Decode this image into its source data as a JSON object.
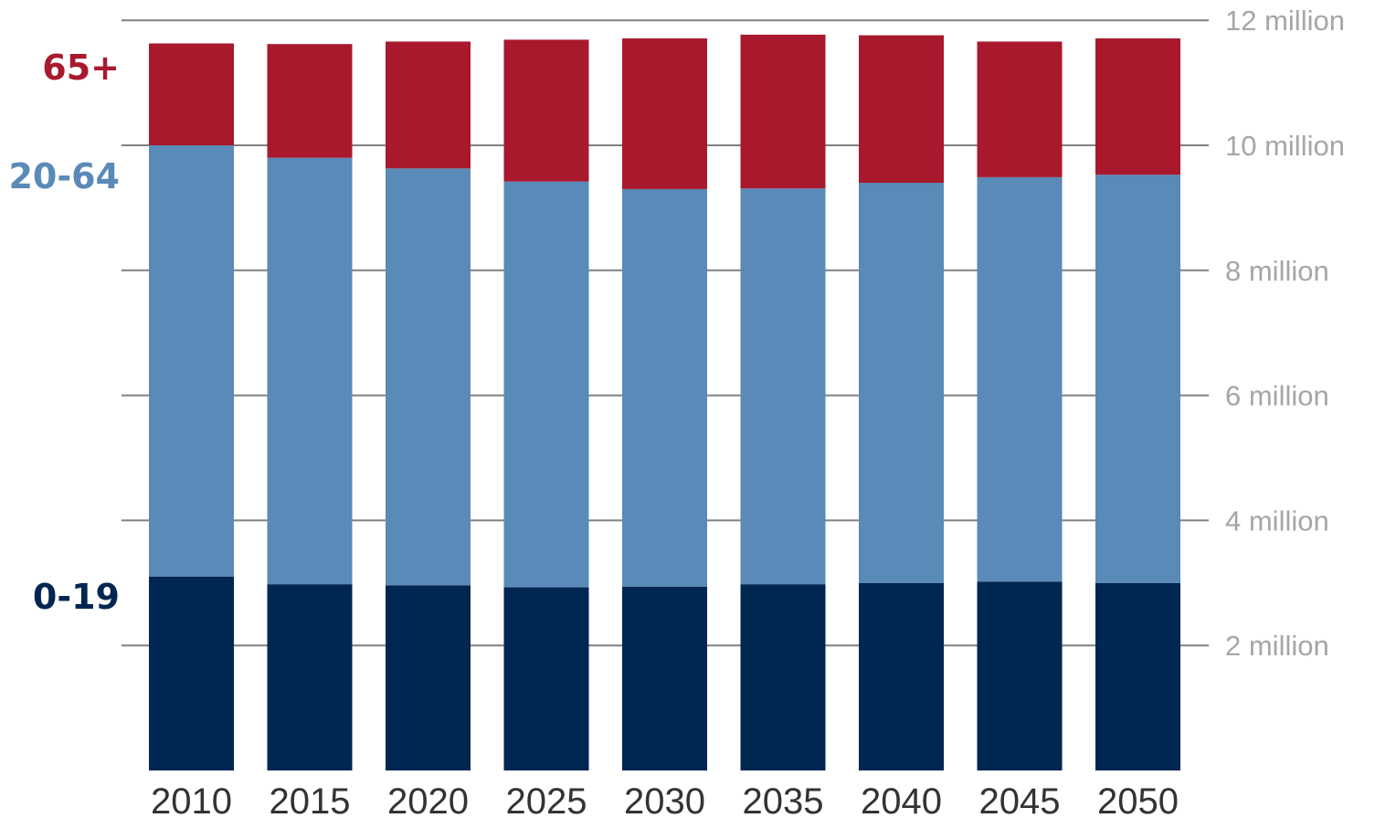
{
  "chart_data": {
    "type": "bar",
    "stacked": true,
    "categories": [
      "2010",
      "2015",
      "2020",
      "2025",
      "2030",
      "2035",
      "2040",
      "2045",
      "2050"
    ],
    "series": [
      {
        "name": "0-19",
        "color": "#002652",
        "values": [
          3.1,
          2.98,
          2.96,
          2.93,
          2.94,
          2.98,
          3.0,
          3.02,
          3.0
        ]
      },
      {
        "name": "20-64",
        "color": "#5a8ab7",
        "values": [
          6.9,
          6.82,
          6.67,
          6.49,
          6.36,
          6.33,
          6.4,
          6.47,
          6.53
        ]
      },
      {
        "name": "65+",
        "color": "#a8192d",
        "values": [
          1.63,
          1.82,
          2.03,
          2.27,
          2.41,
          2.46,
          2.36,
          2.17,
          2.18
        ]
      }
    ],
    "y_ticks": [
      "2 million",
      "4 million",
      "6 million",
      "8 million",
      "10 million",
      "12 million"
    ],
    "ylim": [
      0,
      12
    ],
    "y_axis_side": "right",
    "grid": true,
    "legend": "left"
  }
}
